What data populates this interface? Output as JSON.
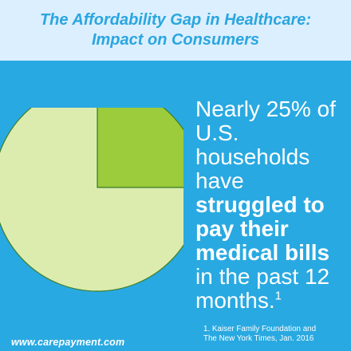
{
  "header": {
    "title": "The Affordability Gap in Healthcare:\nImpact on Consumers"
  },
  "headline": {
    "part1": "Nearly 25% of U.S. households have ",
    "bold": "struggled to pay their medical bills",
    "part2": " in the past 12 months.",
    "footnote_marker": "1"
  },
  "footer": {
    "website": "www.carepayment.com",
    "footnote": "1. Kaiser Family Foundation and\nThe New York Times, Jan. 2016"
  },
  "chart_data": {
    "type": "pie",
    "values": [
      25,
      75
    ],
    "colors": [
      "#9ccc3c",
      "#dcecae"
    ],
    "title": "",
    "legend": "none"
  }
}
